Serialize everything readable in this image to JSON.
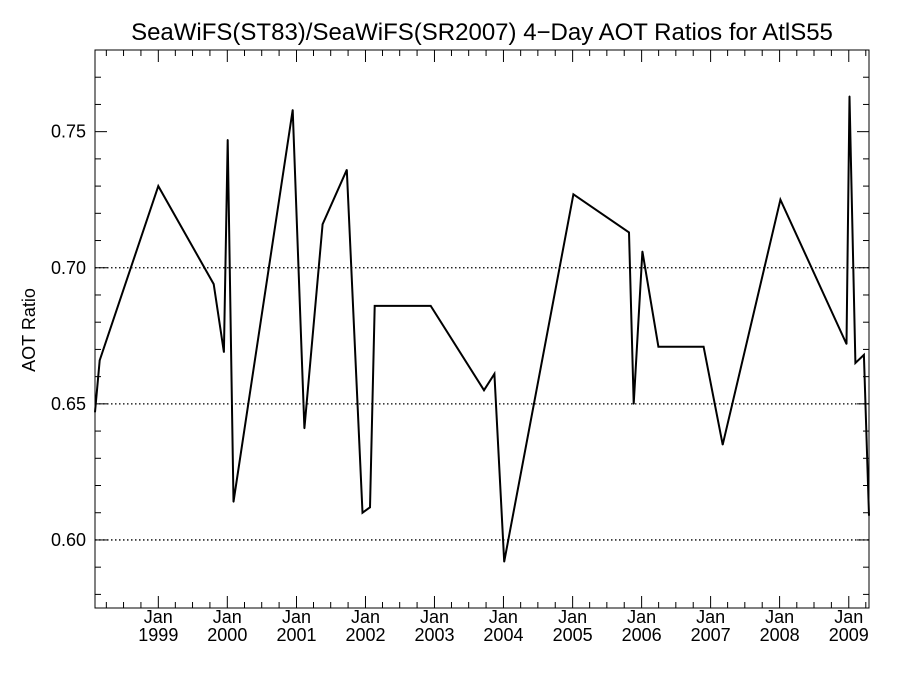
{
  "chart_data": {
    "type": "line",
    "title": "SeaWiFS(ST83)/SeaWiFS(SR2007) 4−Day AOT Ratios for AtlS55",
    "xlabel": "",
    "ylabel": "AOT Ratio",
    "xlim": [
      "1998-01-31",
      "2009-04-18"
    ],
    "ylim": [
      0.575,
      0.78
    ],
    "grid": "dotted horizontal lines at 0.60, 0.65, 0.70",
    "y_ticks": [
      0.6,
      0.65,
      0.7,
      0.75
    ],
    "y_tick_labels": [
      "0.60",
      "0.65",
      "0.70",
      "0.75"
    ],
    "x_ticks": [
      "1999-01-01",
      "2000-01-01",
      "2001-01-01",
      "2002-01-01",
      "2003-01-01",
      "2004-01-01",
      "2005-01-01",
      "2006-01-01",
      "2007-01-01",
      "2008-01-01",
      "2009-01-01"
    ],
    "x_tick_labels": [
      [
        "Jan",
        "1999"
      ],
      [
        "Jan",
        "2000"
      ],
      [
        "Jan",
        "2001"
      ],
      [
        "Jan",
        "2002"
      ],
      [
        "Jan",
        "2003"
      ],
      [
        "Jan",
        "2004"
      ],
      [
        "Jan",
        "2005"
      ],
      [
        "Jan",
        "2006"
      ],
      [
        "Jan",
        "2007"
      ],
      [
        "Jan",
        "2008"
      ],
      [
        "Jan",
        "2009"
      ]
    ],
    "series": [
      {
        "color": "#000000",
        "points": [
          [
            "1998-01-31",
            0.647
          ],
          [
            "1998-02-25",
            0.666
          ],
          [
            "1999-01-01",
            0.73
          ],
          [
            "1999-10-21",
            0.694
          ],
          [
            "1999-12-14",
            0.669
          ],
          [
            "2000-01-03",
            0.747
          ],
          [
            "2000-02-03",
            0.614
          ],
          [
            "2000-12-12",
            0.758
          ],
          [
            "2001-02-12",
            0.641
          ],
          [
            "2001-05-19",
            0.716
          ],
          [
            "2001-09-24",
            0.736
          ],
          [
            "2001-12-16",
            0.61
          ],
          [
            "2002-01-25",
            0.612
          ],
          [
            "2002-02-19",
            0.686
          ],
          [
            "2002-12-12",
            0.686
          ],
          [
            "2003-09-20",
            0.655
          ],
          [
            "2003-11-14",
            0.661
          ],
          [
            "2004-01-05",
            0.592
          ],
          [
            "2005-01-05",
            0.727
          ],
          [
            "2005-10-26",
            0.713
          ],
          [
            "2005-11-20",
            0.65
          ],
          [
            "2006-01-05",
            0.706
          ],
          [
            "2006-03-31",
            0.671
          ],
          [
            "2006-11-25",
            0.671
          ],
          [
            "2007-03-06",
            0.635
          ],
          [
            "2008-01-05",
            0.725
          ],
          [
            "2008-12-20",
            0.672
          ],
          [
            "2009-01-05",
            0.763
          ],
          [
            "2009-02-05",
            0.665
          ],
          [
            "2009-03-22",
            0.668
          ],
          [
            "2009-04-18",
            0.609
          ]
        ]
      }
    ]
  }
}
